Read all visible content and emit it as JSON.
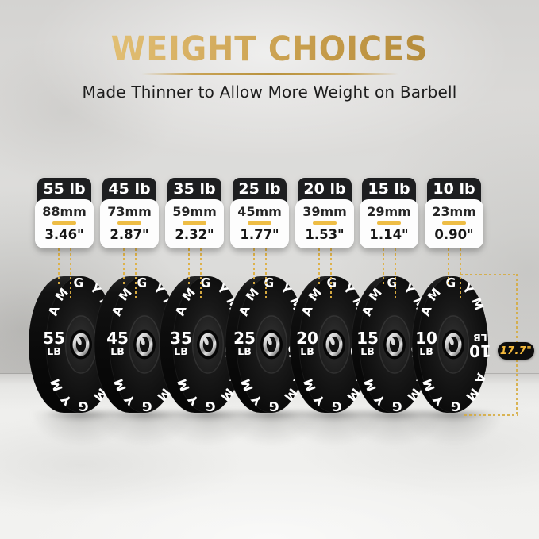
{
  "header": {
    "title": "WEIGHT CHOICES",
    "subtitle": "Made Thinner to Allow More Weight on Barbell"
  },
  "brand": "AMGYM",
  "diameter": {
    "label": "17.7\""
  },
  "weights": [
    {
      "label": "55 lb",
      "value": "55",
      "unit": "LB",
      "thickness_mm": "88mm",
      "thickness_in": "3.46\""
    },
    {
      "label": "45 lb",
      "value": "45",
      "unit": "LB",
      "thickness_mm": "73mm",
      "thickness_in": "2.87\""
    },
    {
      "label": "35 lb",
      "value": "35",
      "unit": "LB",
      "thickness_mm": "59mm",
      "thickness_in": "2.32\""
    },
    {
      "label": "25 lb",
      "value": "25",
      "unit": "LB",
      "thickness_mm": "45mm",
      "thickness_in": "1.77\""
    },
    {
      "label": "20 lb",
      "value": "20",
      "unit": "LB",
      "thickness_mm": "39mm",
      "thickness_in": "1.53\""
    },
    {
      "label": "15 lb",
      "value": "15",
      "unit": "LB",
      "thickness_mm": "29mm",
      "thickness_in": "1.14\""
    },
    {
      "label": "10 lb",
      "value": "10",
      "unit": "LB",
      "thickness_mm": "23mm",
      "thickness_in": "0.90\""
    }
  ],
  "colors": {
    "title_gold": "#c9a355",
    "accent_gold": "#eebd45",
    "guide_gold": "#deb042",
    "card_black": "#1d1e20",
    "text_dark": "#1d1d1d",
    "plate_black": "#111111",
    "hub_silver": "#cfcfcf"
  }
}
